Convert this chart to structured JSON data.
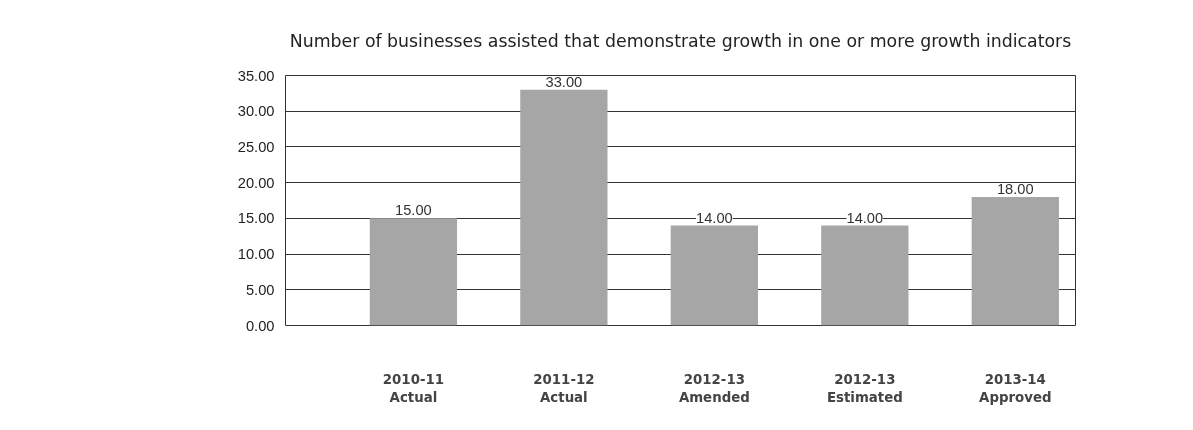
{
  "chart_data": {
    "type": "bar",
    "title": "Number of businesses assisted that demonstrate growth in one or more growth indicators",
    "categories": [
      "2010-11\nActual",
      "2011-12\nActual",
      "2012-13\nAmended",
      "2012-13\nEstimated",
      "2013-14\nApproved"
    ],
    "values": [
      15,
      33,
      14,
      14,
      18
    ],
    "value_labels": [
      "15.00",
      "33.00",
      "14.00",
      "14.00",
      "18.00"
    ],
    "color": "#a6a6a6",
    "ylim": [
      0,
      35
    ],
    "yticks": [
      {
        "value": 0,
        "label": "0.00"
      },
      {
        "value": 5,
        "label": "5.00"
      },
      {
        "value": 10,
        "label": "10.00"
      },
      {
        "value": 15,
        "label": "15.00"
      },
      {
        "value": 20,
        "label": "20.00"
      },
      {
        "value": 25,
        "label": "25.00"
      },
      {
        "value": 30,
        "label": "30.00"
      },
      {
        "value": 35,
        "label": "35.00"
      }
    ],
    "grid": "y"
  }
}
